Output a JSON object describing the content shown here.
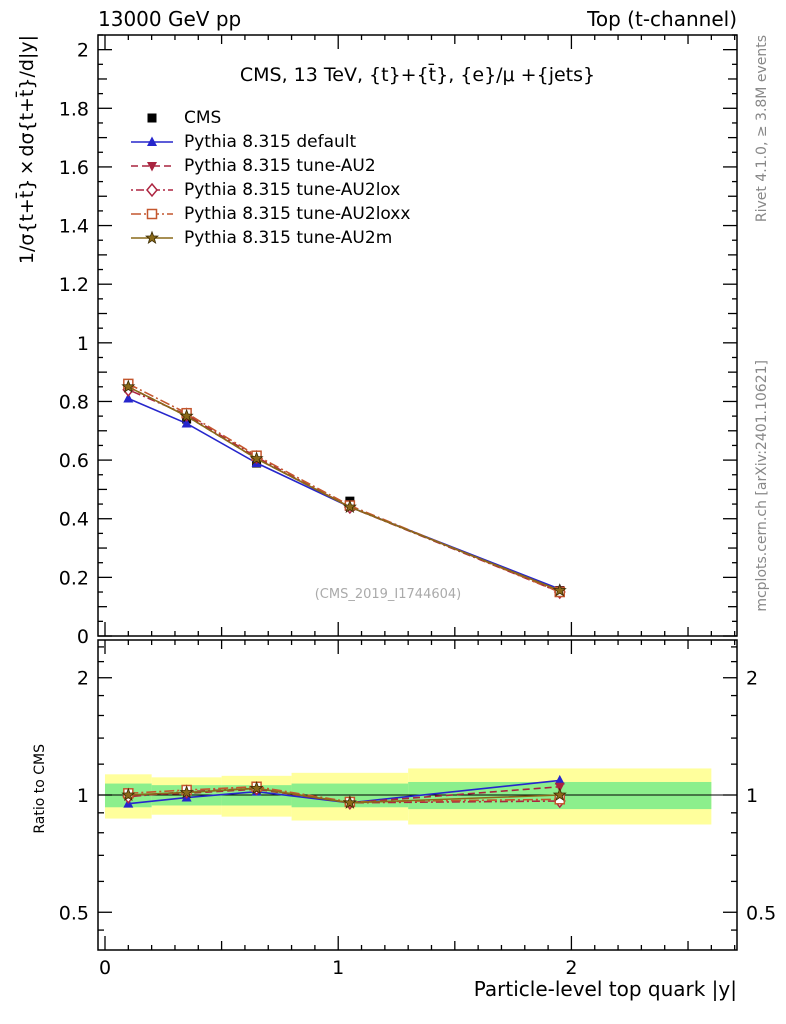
{
  "header": {
    "left": "13000 GeV pp",
    "right": "Top (t-channel)"
  },
  "side_notes": {
    "top_right": "Rivet 4.1.0, ≥ 3.8M events",
    "bottom_right": "mcplots.cern.ch [arXiv:2401.10621]"
  },
  "watermark": "(CMS_2019_I1744604)",
  "chart_data": {
    "type": "line",
    "title": "CMS, 13 TeV, {t}+{t̄}, {e}/μ +{jets}",
    "x_label": "Particle-level top quark |y|",
    "x": [
      0.1,
      0.35,
      0.65,
      1.05,
      1.95
    ],
    "bin_edges": [
      0,
      0.2,
      0.5,
      0.8,
      1.3,
      2.6
    ],
    "xlim": [
      -0.03,
      2.71
    ],
    "xticks_major": [
      0,
      1,
      2
    ],
    "xtick_labels": [
      "0",
      "1",
      "2"
    ],
    "x_minor_step": 0.1,
    "main": {
      "ylabel": "1/σ{t+t̄}×dσ{t+t̄}/d|y|",
      "ylim": [
        0,
        2.05
      ],
      "yticks_major": [
        0,
        0.2,
        0.4,
        0.6,
        0.8,
        1,
        1.2,
        1.4,
        1.6,
        1.8,
        2
      ],
      "ytick_labels": [
        "0",
        "0.2",
        "0.4",
        "0.6",
        "0.8",
        "1",
        "1.2",
        "1.4",
        "1.6",
        "1.8",
        "2"
      ],
      "y_minor_step": 0.05
    },
    "ratio": {
      "ylabel": "Ratio to CMS",
      "scale": "log",
      "ylim": [
        0.4,
        2.5
      ],
      "yticks_major": [
        0.5,
        1,
        2
      ],
      "ytick_labels": [
        "0.5",
        "1",
        "2"
      ],
      "yticks_minor": [
        0.45,
        0.6,
        0.7,
        0.8,
        0.9,
        1.2,
        1.4,
        1.6,
        1.8,
        2.2,
        2.4
      ],
      "refline": 1,
      "bands": {
        "yellow": {
          "color": "#ffff9c",
          "lo": [
            0.87,
            0.89,
            0.88,
            0.86,
            0.84
          ],
          "hi": [
            1.13,
            1.11,
            1.12,
            1.14,
            1.17
          ]
        },
        "green": {
          "color": "#8cef8c",
          "lo": [
            0.93,
            0.94,
            0.94,
            0.93,
            0.92
          ],
          "hi": [
            1.07,
            1.06,
            1.06,
            1.07,
            1.08
          ]
        }
      }
    },
    "series": [
      {
        "name": "CMS",
        "marker": "square",
        "color": "#000000",
        "line": "none",
        "dash": "",
        "values": [
          0.85,
          0.74,
          0.59,
          0.46,
          0.155
        ],
        "ratio": null
      },
      {
        "name": "Pythia 8.315 default",
        "marker": "triangle-up",
        "color": "#2626cc",
        "line": "solid",
        "dash": "",
        "values": [
          0.81,
          0.725,
          0.59,
          0.44,
          0.16
        ],
        "ratio": [
          0.95,
          0.985,
          1.02,
          0.955,
          1.09
        ]
      },
      {
        "name": "Pythia 8.315 tune-AU2",
        "marker": "triangle-down",
        "color": "#a8243f",
        "line": "dash",
        "dash": "7 4",
        "values": [
          0.85,
          0.75,
          0.605,
          0.44,
          0.155
        ],
        "ratio": [
          1.0,
          1.01,
          1.035,
          0.955,
          1.05
        ]
      },
      {
        "name": "Pythia 8.315 tune-AU2lox",
        "marker": "diamond-open",
        "color": "#ad2540",
        "line": "dash",
        "dash": "2 3 8 3",
        "values": [
          0.84,
          0.755,
          0.61,
          0.44,
          0.15
        ],
        "ratio": [
          0.99,
          1.02,
          1.04,
          0.955,
          0.965
        ]
      },
      {
        "name": "Pythia 8.315 tune-AU2loxx",
        "marker": "square-open",
        "color": "#c4572e",
        "line": "dash",
        "dash": "10 3 2 3",
        "values": [
          0.86,
          0.76,
          0.615,
          0.445,
          0.15
        ],
        "ratio": [
          1.01,
          1.03,
          1.05,
          0.96,
          0.975
        ]
      },
      {
        "name": "Pythia 8.315 tune-AU2m",
        "marker": "star",
        "color": "#8a6a1a",
        "line": "solid",
        "dash": "",
        "values": [
          0.85,
          0.75,
          0.605,
          0.44,
          0.155
        ],
        "ratio": [
          1.0,
          1.015,
          1.04,
          0.955,
          1.0
        ]
      }
    ]
  }
}
